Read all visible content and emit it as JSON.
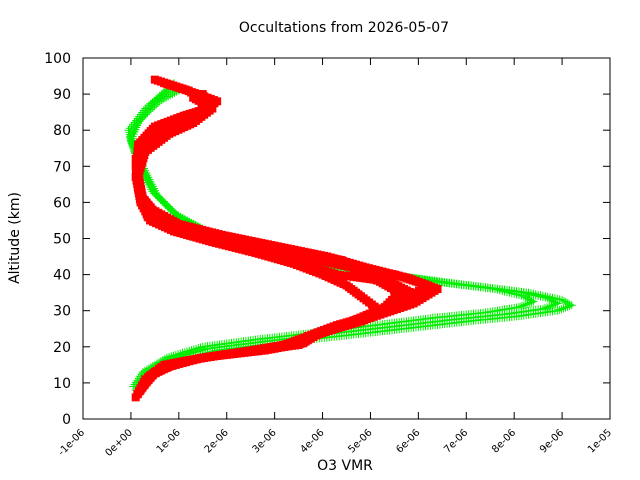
{
  "chart_data": {
    "type": "scatter",
    "title": "Occultations from 2026-05-07",
    "xlabel": "O3 VMR",
    "ylabel": "Altitude (km)",
    "xlim": [
      -1e-06,
      1e-05
    ],
    "ylim": [
      0,
      100
    ],
    "x_tick_labels": [
      "-1e-06",
      "0e+00",
      "1e-06",
      "2e-06",
      "3e-06",
      "4e-06",
      "5e-06",
      "6e-06",
      "7e-06",
      "8e-06",
      "9e-06",
      "1e-05"
    ],
    "x_tick_values": [
      -1e-06,
      0,
      1e-06,
      2e-06,
      3e-06,
      4e-06,
      5e-06,
      6e-06,
      7e-06,
      8e-06,
      9e-06,
      1e-05
    ],
    "y_tick_labels": [
      "0",
      "10",
      "20",
      "30",
      "40",
      "50",
      "60",
      "70",
      "80",
      "90",
      "100"
    ],
    "y_tick_values": [
      0,
      10,
      20,
      30,
      40,
      50,
      60,
      70,
      80,
      90,
      100
    ],
    "grid": false,
    "series": [
      {
        "marker": "plus",
        "color": "#00ee00",
        "profiles": [
          {
            "x": [
              1.5e-07,
              3.5e-07,
              9e-07,
              1.8e-06,
              3e-06,
              4.4e-06,
              5.7e-06,
              7e-06,
              8.1e-06,
              8.9e-06,
              9.2e-06,
              9e-06,
              8.3e-06,
              7e-06,
              5.3e-06,
              3.4e-06,
              1.9e-06,
              1e-06,
              5.5e-07,
              2.5e-07,
              5e-08,
              -5e-08,
              3e-07,
              9e-07
            ],
            "y": [
              7,
              12,
              16,
              19,
              21,
              23,
              25,
              27,
              28.5,
              30,
              31.5,
              33,
              35,
              37,
              40,
              44,
              50,
              56,
              62,
              70,
              76,
              80,
              86,
              93
            ]
          },
          {
            "x": [
              1e-07,
              3e-07,
              8e-07,
              1.6e-06,
              2.8e-06,
              4.1e-06,
              5.4e-06,
              6.7e-06,
              7.8e-06,
              8.6e-06,
              8.9e-06,
              8.7e-06,
              8e-06,
              6.8e-06,
              5.1e-06,
              3.3e-06,
              1.8e-06,
              9.5e-07,
              5e-07,
              2e-07,
              0.0,
              1.5e-07,
              5e-07,
              9e-07
            ],
            "y": [
              8,
              12.5,
              16.5,
              19.5,
              21.5,
              23.5,
              25.5,
              27.5,
              29,
              30.5,
              32,
              33.5,
              35.5,
              37.5,
              40.5,
              44.5,
              50.5,
              56.5,
              62.5,
              70,
              77,
              82,
              88,
              92
            ]
          },
          {
            "x": [
              5e-08,
              2.5e-07,
              7.5e-07,
              1.5e-06,
              2.6e-06,
              3.9e-06,
              5.1e-06,
              6.3e-06,
              7.4e-06,
              8.1e-06,
              8.4e-06,
              8.2e-06,
              7.6e-06,
              6.4e-06,
              4.9e-06,
              3.2e-06,
              1.7e-06,
              9e-07,
              4.5e-07,
              1.5e-07,
              -2e-08,
              2e-07,
              6e-07,
              1e-06
            ],
            "y": [
              9,
              13,
              17,
              20,
              22,
              24,
              26,
              28,
              29.5,
              31,
              32.5,
              34,
              36,
              38,
              41,
              45,
              51,
              57,
              63,
              71,
              78,
              83,
              88,
              91
            ]
          }
        ]
      },
      {
        "marker": "square",
        "color": "#ff0000",
        "profiles": [
          {
            "x": [
              1e-07,
              3e-07,
              7e-07,
              1.5e-06,
              2.8e-06,
              3.6e-06,
              3.9e-06,
              4.6e-06,
              5.3e-06,
              5.6e-06,
              5.2e-06,
              4.7e-06,
              4.4e-06,
              3.2e-06,
              2e-06,
              1.1e-06,
              5e-07,
              2.5e-07,
              1.5e-07,
              2e-07,
              6e-07,
              1.2e-06,
              1.6e-06,
              1.2e-06,
              5e-07
            ],
            "y": [
              6,
              11,
              15,
              17,
              19,
              21,
              24,
              27,
              31,
              35,
              38,
              41,
              44,
              47,
              50,
              53,
              57,
              61,
              68,
              75,
              80,
              83,
              87,
              91,
              94
            ]
          },
          {
            "x": [
              1.5e-07,
              4e-07,
              9e-07,
              1.8e-06,
              3e-06,
              3.5e-06,
              4.2e-06,
              5e-06,
              5.9e-06,
              6.4e-06,
              5.8e-06,
              4.9e-06,
              4.1e-06,
              3e-06,
              1.9e-06,
              1e-06,
              4.5e-07,
              2e-07,
              1e-07,
              2.5e-07,
              7e-07,
              1.4e-06,
              1.8e-06,
              1.4e-06,
              7e-07
            ],
            "y": [
              7,
              12,
              15.5,
              17.5,
              19.5,
              22,
              25,
              28,
              32,
              36,
              39,
              42,
              45,
              48,
              51,
              54,
              58,
              62,
              70,
              77,
              81,
              84,
              88,
              90,
              93
            ]
          },
          {
            "x": [
              2e-07,
              5e-07,
              1.1e-06,
              2e-06,
              3.2e-06,
              3.8e-06,
              4.5e-06,
              5.2e-06,
              4.8e-06,
              4.5e-06,
              4e-06,
              3.4e-06,
              2.6e-06,
              1.7e-06,
              9e-07,
              4e-07,
              2e-07,
              1.2e-07,
              3e-07,
              8e-07,
              1.3e-06,
              1.7e-06,
              1.3e-06
            ],
            "y": [
              8,
              13,
              16,
              18,
              20,
              23,
              26,
              30,
              34,
              37,
              40,
              43,
              46,
              49,
              52,
              55,
              60,
              66,
              74,
              79,
              82,
              86,
              89
            ]
          },
          {
            "x": [
              3e-07,
              6e-07,
              1.3e-06,
              2.3e-06,
              3.5e-06,
              4e-06,
              4.8e-06,
              5.5e-06,
              6e-06,
              5.4e-06,
              4.3e-06,
              3.6e-06,
              2.8e-06,
              1.8e-06,
              9e-07,
              3.5e-07,
              1.5e-07,
              1e-07,
              3.5e-07,
              9e-07,
              1.5e-06,
              1.7e-06
            ],
            "y": [
              10,
              14,
              16.5,
              18.5,
              20.5,
              24,
              27,
              31,
              34,
              38,
              40,
              43,
              46,
              49,
              52,
              56,
              64,
              72,
              78,
              81,
              85,
              88
            ]
          },
          {
            "x": [
              4e-07,
              8e-07,
              1.5e-06,
              2.5e-06,
              3.4e-06,
              3.7e-06,
              4.3e-06,
              5.1e-06,
              5.7e-06,
              6.2e-06,
              5.5e-06,
              4.6e-06,
              3.9e-06,
              3.1e-06,
              2.1e-06,
              1.2e-06,
              6e-07,
              2.5e-07,
              1e-07,
              1.5e-07,
              5e-07,
              1.1e-06,
              1.6e-06,
              1.5e-06
            ],
            "y": [
              12,
              14.5,
              17,
              19,
              21,
              23,
              26,
              29,
              33,
              37,
              40,
              42,
              44,
              46,
              48,
              51,
              55,
              60,
              67,
              76,
              81,
              84,
              86,
              90
            ]
          }
        ]
      }
    ]
  }
}
